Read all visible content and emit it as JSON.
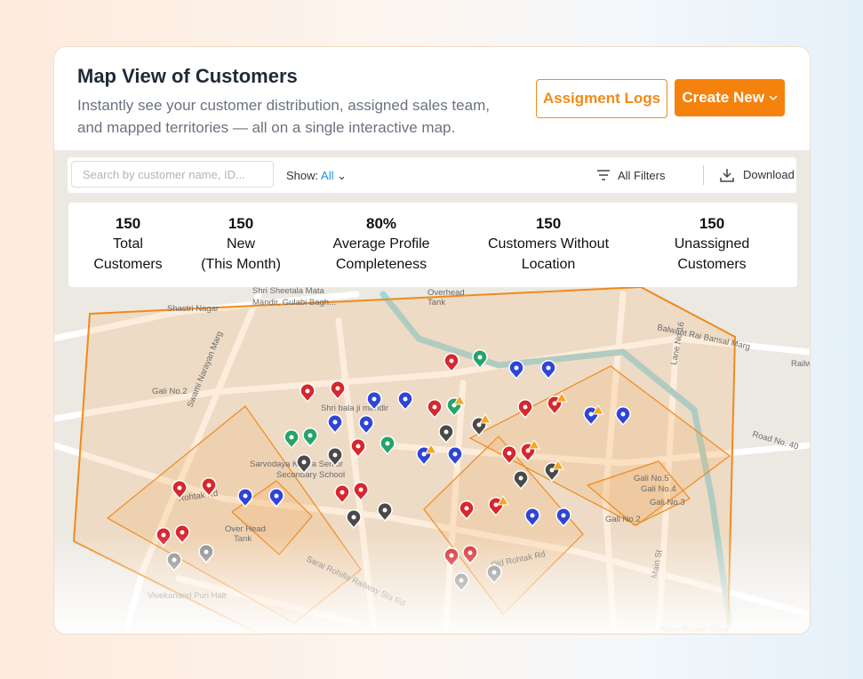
{
  "header": {
    "title": "Map View of Customers",
    "subtitle_lines": [
      "Instantly see your customer distribution, assigned sales team,",
      "and mapped territories — all on a single interactive map."
    ],
    "buttons": [
      "Assigment Logs",
      "Create New"
    ]
  },
  "toolbar": {
    "search_placeholder": "Search by customer name, ID...",
    "show_label": "Show:",
    "show_value": "All",
    "filters": "All Filters",
    "download": "Download"
  },
  "stats": [
    {
      "value": "150",
      "label_lines": [
        "Total",
        "Customers"
      ]
    },
    {
      "value": "150",
      "label_lines": [
        "New",
        "(This Month)"
      ]
    },
    {
      "value": "80%",
      "label_lines": [
        "Average Profile",
        "Completeness"
      ]
    },
    {
      "value": "150",
      "label_lines": [
        "Customers Without",
        "Location"
      ]
    },
    {
      "value": "150",
      "label_lines": [
        "Unassigned",
        "Customers"
      ]
    }
  ],
  "map_labels": [
    "Shastri Nagar",
    "Shri Sheetala Mata",
    "Mandir, Gulabi Bagh...",
    "Overhead",
    "Tank",
    "Balwant Rai Bansal Marg",
    "Swami Narayan Marg",
    "Gali No.2",
    "Shri bala ji mandir",
    "Sarvodaya Kanya Senior",
    "Secondary School",
    "Road No. 40",
    "Rohtak Rd",
    "Over Head",
    "Tank",
    "Sarai Rohilla Railway Sta Rd",
    "Old Rohtak Rd",
    "Vivekanand Puri Halt",
    "Gali No.5",
    "Gali No.4",
    "Gali No.3",
    "Gali No.2",
    "Lane No.16",
    "Main St",
    "Naya Baraat Ghar",
    "Railw"
  ]
}
